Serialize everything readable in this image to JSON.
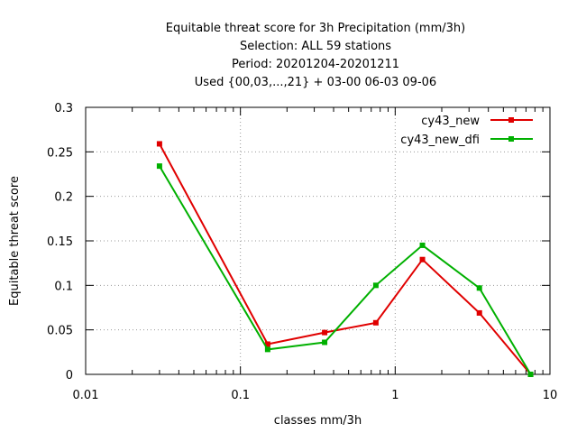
{
  "chart_data": {
    "type": "line",
    "title_lines": [
      "Equitable threat score  for 3h Precipitation (mm/3h)",
      "Selection: ALL     59 stations",
      "Period: 20201204-20201211",
      "Used {00,03,...,21} + 03-00 06-03 09-06"
    ],
    "xlabel": "classes mm/3h",
    "ylabel": "Equitable threat score",
    "x_scale": "log",
    "xlim": [
      0.01,
      10
    ],
    "ylim": [
      0,
      0.3
    ],
    "x_ticks": [
      "0.01",
      "0.1",
      "1",
      "10"
    ],
    "y_ticks": [
      "0",
      "0.05",
      "0.1",
      "0.15",
      "0.2",
      "0.25",
      "0.3"
    ],
    "grid": true,
    "legend_position": "top-right",
    "series": [
      {
        "name": "cy43_new",
        "color": "#e00000",
        "x": [
          0.03,
          0.15,
          0.35,
          0.75,
          1.5,
          3.5,
          7.5
        ],
        "y": [
          0.259,
          0.034,
          0.047,
          0.058,
          0.129,
          0.069,
          0.0
        ]
      },
      {
        "name": "cy43_new_dfi",
        "color": "#00b000",
        "x": [
          0.03,
          0.15,
          0.35,
          0.75,
          1.5,
          3.5,
          7.5
        ],
        "y": [
          0.234,
          0.028,
          0.036,
          0.1,
          0.145,
          0.097,
          0.0
        ]
      }
    ]
  }
}
